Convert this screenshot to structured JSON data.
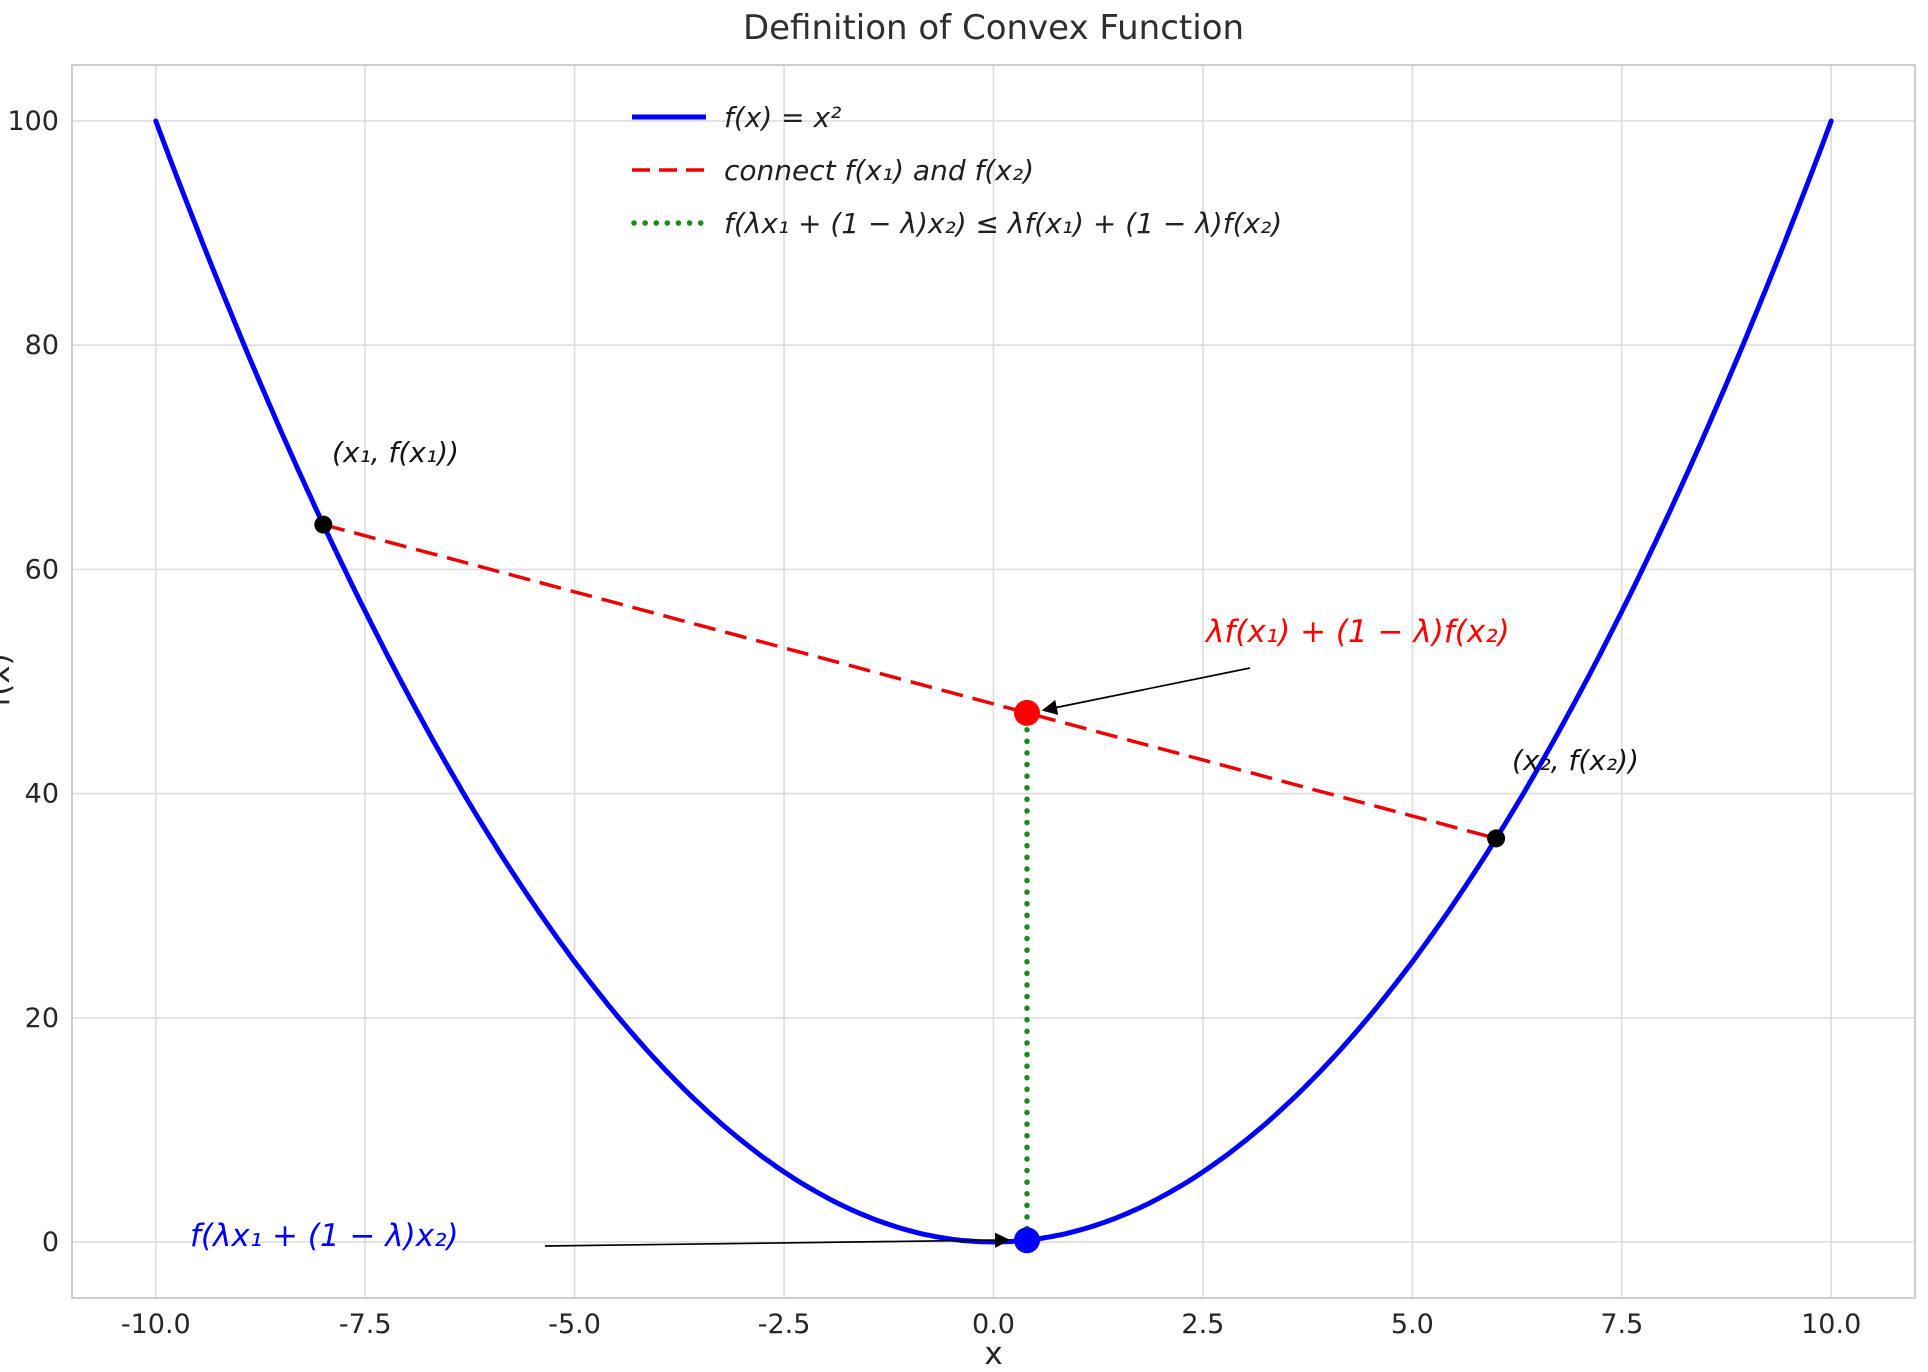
{
  "chart_data": {
    "type": "line",
    "title": "Definition of Convex Function",
    "xlabel": "x",
    "ylabel": "f(x)",
    "xlim": [
      -11,
      11
    ],
    "ylim": [
      -5,
      105
    ],
    "xticks": [
      -10,
      -7.5,
      -5,
      -2.5,
      0,
      2.5,
      5,
      7.5,
      10
    ],
    "xtick_labels": [
      "-10.0",
      "-7.5",
      "-5.0",
      "-2.5",
      "0.0",
      "2.5",
      "5.0",
      "7.5",
      "10.0"
    ],
    "yticks": [
      0,
      20,
      40,
      60,
      80,
      100
    ],
    "ytick_labels": [
      "0",
      "20",
      "40",
      "60",
      "80",
      "100"
    ],
    "grid": true,
    "grid_color": "#dcdcdc",
    "text_color": "#262626",
    "legend_position": "upper center",
    "series": [
      {
        "name": "f(x) = x²",
        "type": "function",
        "expr": "x**2",
        "x_range": [
          -10,
          10
        ],
        "color": "#0000ff",
        "style": "solid",
        "width": 5
      },
      {
        "name": "connect f(x₁) and f(x₂)",
        "type": "segment",
        "points": [
          [
            -8,
            64
          ],
          [
            6,
            36
          ]
        ],
        "color": "#ee0000",
        "style": "dashed",
        "width": 3.5
      },
      {
        "name": "f(λx₁ + (1 − λ)x₂) ≤ λf(x₁) + (1 − λ)f(x₂)",
        "type": "segment",
        "points": [
          [
            0.4,
            0.16
          ],
          [
            0.4,
            47.2
          ]
        ],
        "color": "#1a8a1a",
        "style": "dotted",
        "width": 5.5
      }
    ],
    "points": [
      {
        "x": -8,
        "y": 64,
        "color": "#000000",
        "r": 9
      },
      {
        "x": 6,
        "y": 36,
        "color": "#000000",
        "r": 9
      },
      {
        "x": 0.4,
        "y": 47.2,
        "color": "#ff0000",
        "r": 13
      },
      {
        "x": 0.4,
        "y": 0.16,
        "color": "#0000ff",
        "r": 13
      }
    ],
    "point_labels": [
      {
        "text": "(x₁, f(x₁))",
        "x": -8,
        "y": 64
      },
      {
        "text": "(x₂, f(x₂))",
        "x": 6,
        "y": 36
      }
    ],
    "annotations": [
      {
        "text": "λf(x₁) + (1 − λ)f(x₂)",
        "color": "#ff0000",
        "target": [
          0.4,
          47.2
        ]
      },
      {
        "text": "f(λx₁ + (1 − λ)x₂)",
        "color": "#0000ff",
        "target": [
          0.4,
          0.16
        ]
      }
    ]
  }
}
